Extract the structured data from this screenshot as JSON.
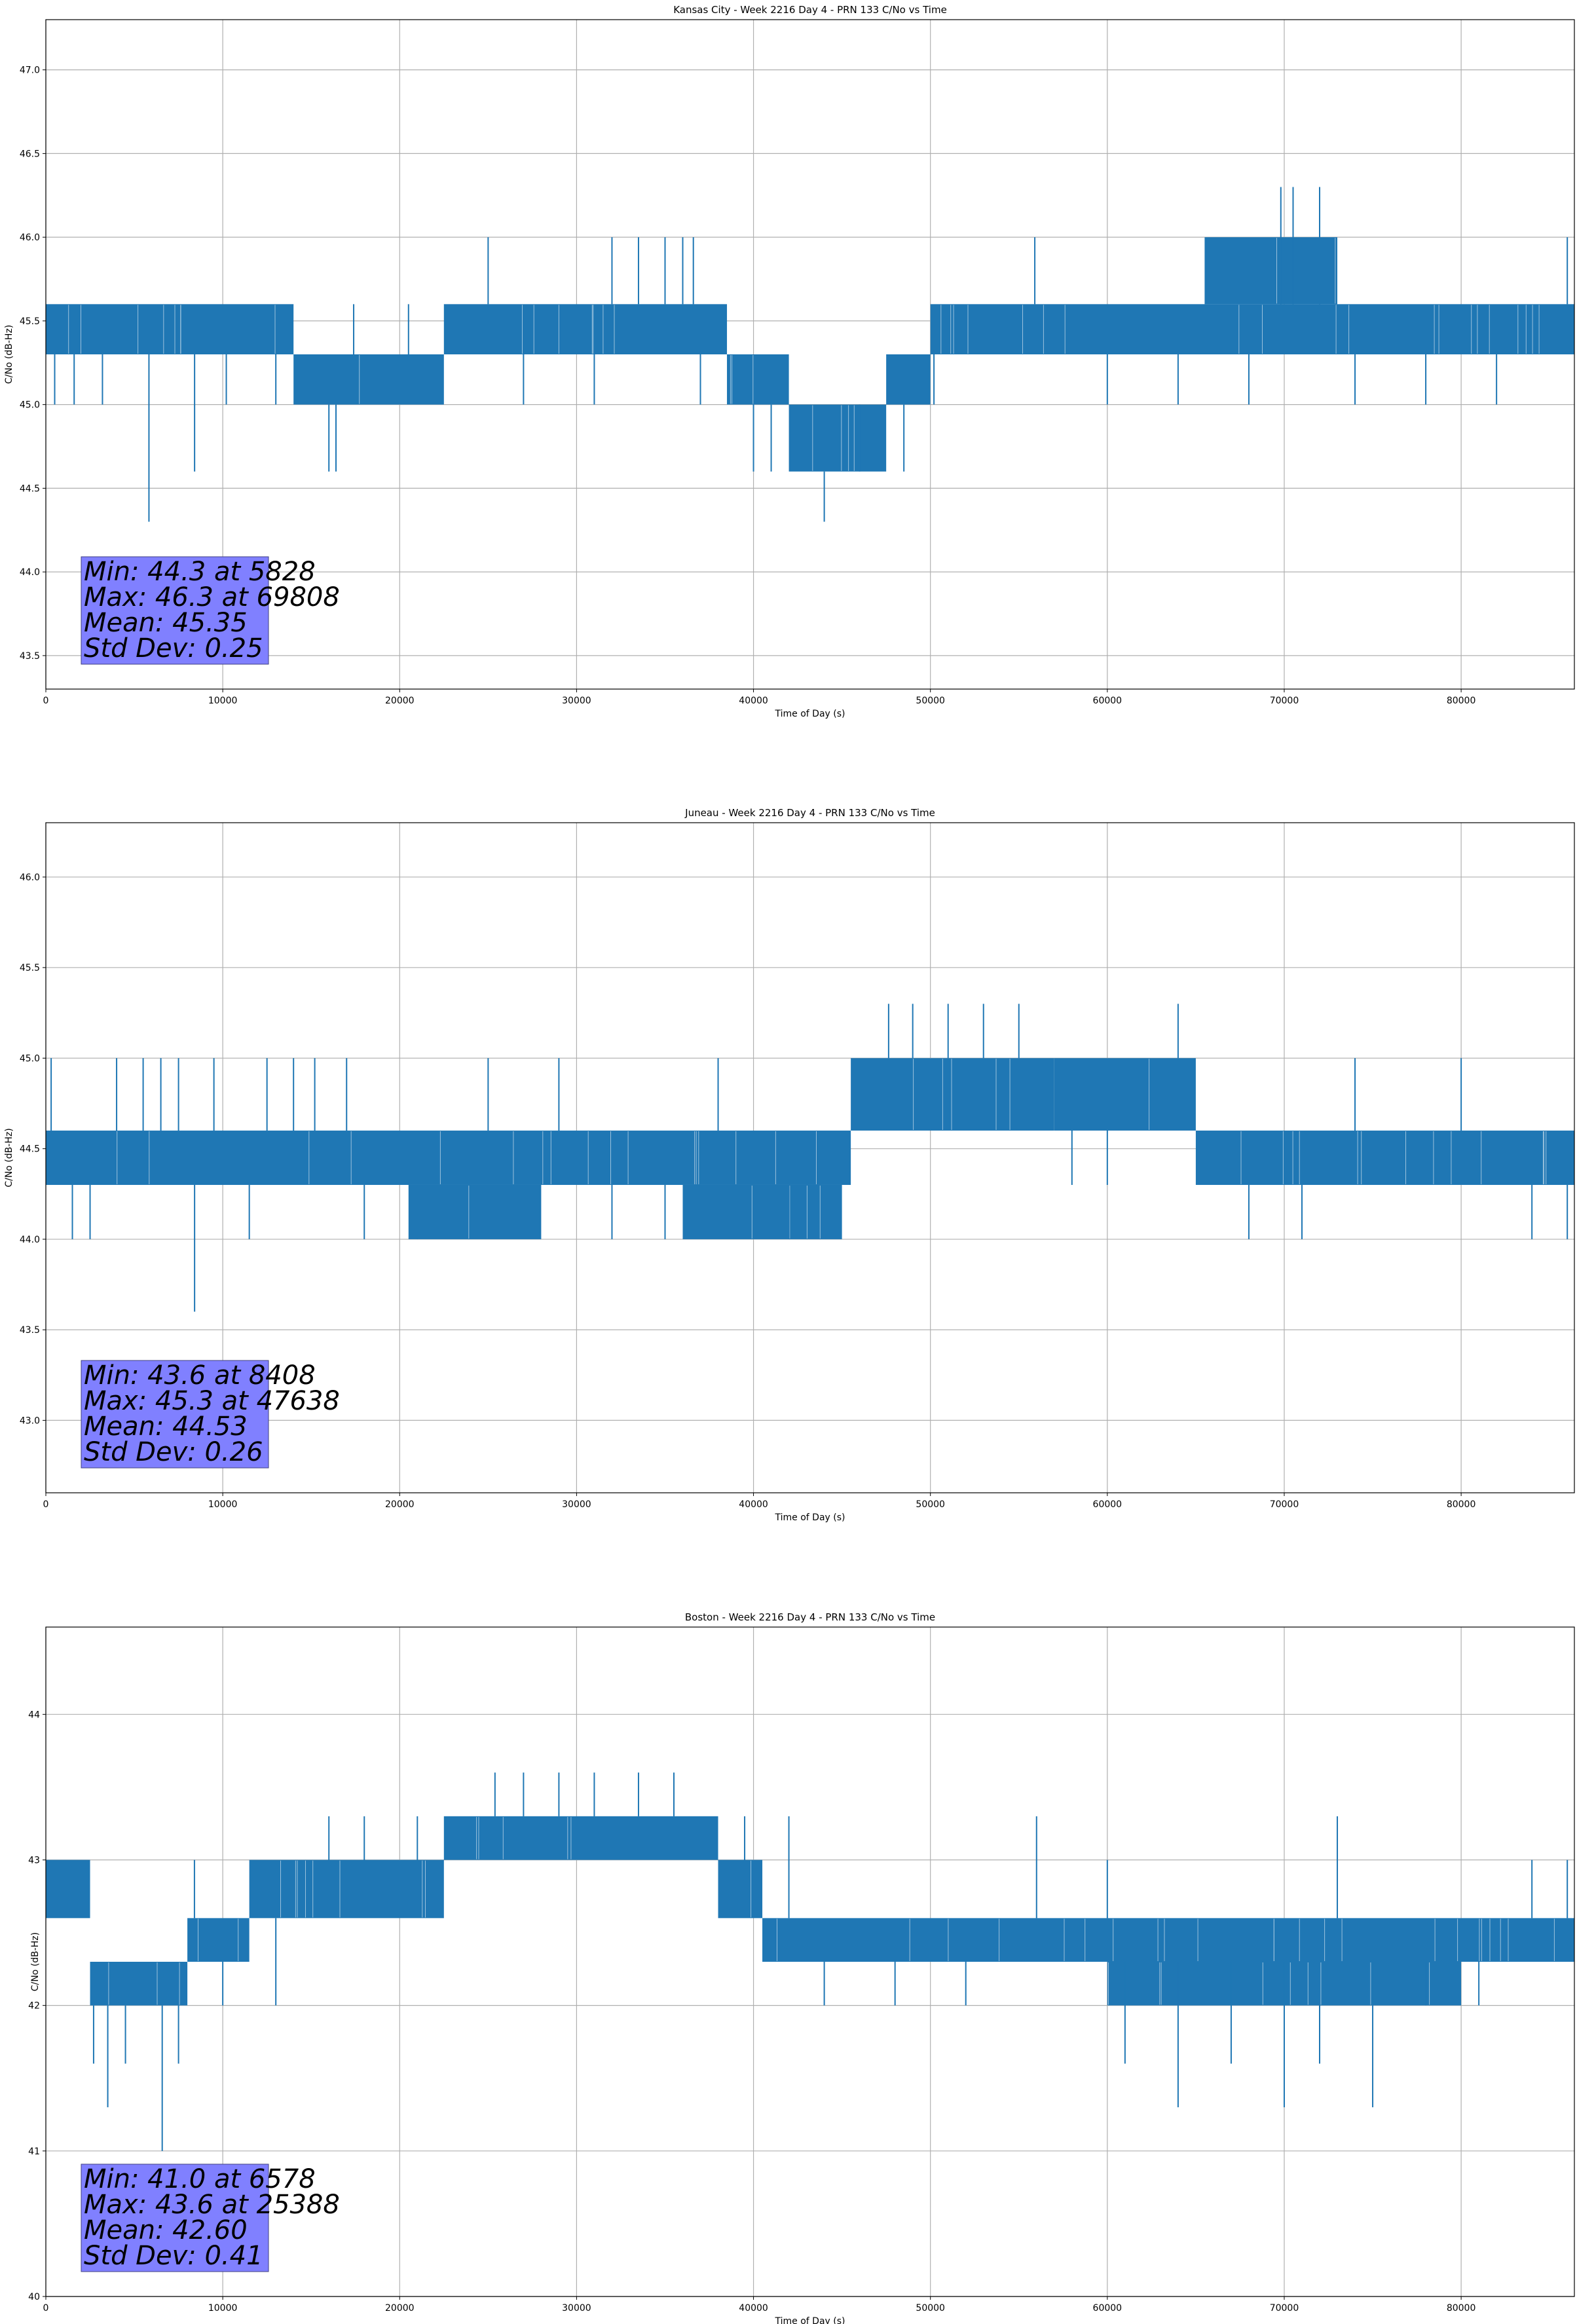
{
  "chart_data": [
    {
      "type": "line",
      "title": "Kansas City - Week 2216 Day 4 - PRN 133 C/No vs Time",
      "xlabel": "Time of Day (s)",
      "ylabel": "C/No (dB-Hz)",
      "xlim": [
        0,
        86400
      ],
      "ylim": [
        43.3,
        47.3
      ],
      "xticks": [
        0,
        10000,
        20000,
        30000,
        40000,
        50000,
        60000,
        70000,
        80000
      ],
      "yticks": [
        43.5,
        44.0,
        44.5,
        45.0,
        45.5,
        46.0,
        46.5,
        47.0
      ],
      "ytick_labels": [
        "43.5",
        "44.0",
        "44.5",
        "45.0",
        "45.5",
        "46.0",
        "46.5",
        "47.0"
      ],
      "grid": true,
      "line_color": "#1f77b4",
      "stats_box_color": "#8080ff",
      "stats": [
        "Min: 44.3 at 5828",
        "Max: 46.3 at 69808",
        "Mean: 45.35",
        "Std Dev: 0.25"
      ],
      "segments": [
        {
          "x": [
            0,
            14000
          ],
          "low": 45.3,
          "high": 45.6
        },
        {
          "x": [
            14000,
            22500
          ],
          "low": 45.0,
          "high": 45.3
        },
        {
          "x": [
            22500,
            38500
          ],
          "low": 45.3,
          "high": 45.6
        },
        {
          "x": [
            38500,
            42000
          ],
          "low": 45.0,
          "high": 45.3
        },
        {
          "x": [
            42000,
            47500
          ],
          "low": 44.6,
          "high": 45.0
        },
        {
          "x": [
            47500,
            50000
          ],
          "low": 45.0,
          "high": 45.3
        },
        {
          "x": [
            50000,
            86400
          ],
          "low": 45.3,
          "high": 45.6
        },
        {
          "x": [
            65500,
            73000
          ],
          "low": 45.6,
          "high": 46.0
        }
      ],
      "spikes": [
        [
          500,
          45.0
        ],
        [
          1600,
          45.0
        ],
        [
          3200,
          45.0
        ],
        [
          5828,
          44.3
        ],
        [
          8408,
          44.6
        ],
        [
          10200,
          45.0
        ],
        [
          13000,
          45.0
        ],
        [
          16000,
          44.6
        ],
        [
          16400,
          44.6
        ],
        [
          17400,
          45.6
        ],
        [
          20500,
          45.6
        ],
        [
          25000,
          46.0
        ],
        [
          27000,
          45.0
        ],
        [
          31000,
          45.0
        ],
        [
          32000,
          46.0
        ],
        [
          33500,
          46.0
        ],
        [
          35000,
          46.0
        ],
        [
          36000,
          46.0
        ],
        [
          36600,
          46.0
        ],
        [
          37000,
          45.0
        ],
        [
          40000,
          44.6
        ],
        [
          41000,
          44.6
        ],
        [
          44000,
          44.3
        ],
        [
          46000,
          44.6
        ],
        [
          48500,
          44.6
        ],
        [
          50200,
          45.0
        ],
        [
          55900,
          46.0
        ],
        [
          60000,
          45.0
        ],
        [
          64000,
          45.0
        ],
        [
          68000,
          45.0
        ],
        [
          69808,
          46.3
        ],
        [
          70500,
          46.3
        ],
        [
          72000,
          46.3
        ],
        [
          73500,
          45.6
        ],
        [
          74000,
          45.0
        ],
        [
          78000,
          45.0
        ],
        [
          82000,
          45.0
        ],
        [
          86000,
          46.0
        ]
      ]
    },
    {
      "type": "line",
      "title": "Juneau - Week 2216 Day 4 - PRN 133 C/No vs Time",
      "xlabel": "Time of Day (s)",
      "ylabel": "C/No (dB-Hz)",
      "xlim": [
        0,
        86400
      ],
      "ylim": [
        42.6,
        46.3
      ],
      "xticks": [
        0,
        10000,
        20000,
        30000,
        40000,
        50000,
        60000,
        70000,
        80000
      ],
      "yticks": [
        43.0,
        43.5,
        44.0,
        44.5,
        45.0,
        45.5,
        46.0
      ],
      "ytick_labels": [
        "43.0",
        "43.5",
        "44.0",
        "44.5",
        "45.0",
        "45.5",
        "46.0"
      ],
      "grid": true,
      "line_color": "#1f77b4",
      "stats_box_color": "#8080ff",
      "stats": [
        "Min: 43.6 at 8408",
        "Max: 45.3 at 47638",
        "Mean: 44.53",
        "Std Dev: 0.26"
      ],
      "segments": [
        {
          "x": [
            0,
            45500
          ],
          "low": 44.3,
          "high": 44.6
        },
        {
          "x": [
            45500,
            57000
          ],
          "low": 44.6,
          "high": 45.0
        },
        {
          "x": [
            57000,
            65000
          ],
          "low": 44.6,
          "high": 45.0
        },
        {
          "x": [
            65000,
            86400
          ],
          "low": 44.3,
          "high": 44.6
        },
        {
          "x": [
            20500,
            28000
          ],
          "low": 44.0,
          "high": 44.3
        },
        {
          "x": [
            36000,
            45000
          ],
          "low": 44.0,
          "high": 44.3
        }
      ],
      "spikes": [
        [
          300,
          45.0
        ],
        [
          1500,
          44.0
        ],
        [
          2500,
          44.0
        ],
        [
          4000,
          45.0
        ],
        [
          5500,
          45.0
        ],
        [
          6500,
          45.0
        ],
        [
          7500,
          45.0
        ],
        [
          8408,
          43.6
        ],
        [
          9500,
          45.0
        ],
        [
          11500,
          44.0
        ],
        [
          12500,
          45.0
        ],
        [
          14000,
          45.0
        ],
        [
          15200,
          45.0
        ],
        [
          17000,
          45.0
        ],
        [
          18000,
          44.0
        ],
        [
          21000,
          44.0
        ],
        [
          25000,
          45.0
        ],
        [
          29000,
          45.0
        ],
        [
          32000,
          44.0
        ],
        [
          35000,
          44.0
        ],
        [
          38000,
          45.0
        ],
        [
          42000,
          44.0
        ],
        [
          47638,
          45.3
        ],
        [
          49000,
          45.3
        ],
        [
          51000,
          45.3
        ],
        [
          53000,
          45.3
        ],
        [
          55000,
          45.3
        ],
        [
          58000,
          44.3
        ],
        [
          60000,
          44.3
        ],
        [
          64000,
          45.3
        ],
        [
          68000,
          44.0
        ],
        [
          71000,
          44.0
        ],
        [
          74000,
          45.0
        ],
        [
          80000,
          45.0
        ],
        [
          84000,
          44.0
        ],
        [
          86000,
          44.0
        ]
      ]
    },
    {
      "type": "line",
      "title": "Boston - Week 2216 Day 4 - PRN 133 C/No vs Time",
      "xlabel": "Time of Day (s)",
      "ylabel": "C/No (dB-Hz)",
      "xlim": [
        0,
        86400
      ],
      "ylim": [
        40.0,
        44.6
      ],
      "xticks": [
        0,
        10000,
        20000,
        30000,
        40000,
        50000,
        60000,
        70000,
        80000
      ],
      "yticks": [
        40,
        41,
        42,
        43,
        44
      ],
      "ytick_labels": [
        "40",
        "41",
        "42",
        "43",
        "44"
      ],
      "grid": true,
      "line_color": "#1f77b4",
      "stats_box_color": "#8080ff",
      "stats": [
        "Min: 41.0 at 6578",
        "Max: 43.6 at 25388",
        "Mean: 42.60",
        "Std Dev: 0.41"
      ],
      "segments": [
        {
          "x": [
            0,
            2500
          ],
          "low": 42.6,
          "high": 43.0
        },
        {
          "x": [
            2500,
            8000
          ],
          "low": 42.0,
          "high": 42.3
        },
        {
          "x": [
            8000,
            11500
          ],
          "low": 42.3,
          "high": 42.6
        },
        {
          "x": [
            11500,
            22500
          ],
          "low": 42.6,
          "high": 43.0
        },
        {
          "x": [
            22500,
            38000
          ],
          "low": 43.0,
          "high": 43.3
        },
        {
          "x": [
            38000,
            40500
          ],
          "low": 42.6,
          "high": 43.0
        },
        {
          "x": [
            40500,
            86400
          ],
          "low": 42.3,
          "high": 42.6
        },
        {
          "x": [
            60000,
            80000
          ],
          "low": 42.0,
          "high": 42.3
        }
      ],
      "spikes": [
        [
          500,
          43.0
        ],
        [
          1500,
          43.0
        ],
        [
          2700,
          41.6
        ],
        [
          3500,
          41.3
        ],
        [
          4500,
          41.6
        ],
        [
          6578,
          41.0
        ],
        [
          7500,
          41.6
        ],
        [
          8400,
          43.0
        ],
        [
          10000,
          42.0
        ],
        [
          13000,
          42.0
        ],
        [
          16000,
          43.3
        ],
        [
          18000,
          43.3
        ],
        [
          21000,
          43.3
        ],
        [
          25388,
          43.6
        ],
        [
          27000,
          43.6
        ],
        [
          29000,
          43.6
        ],
        [
          31000,
          43.6
        ],
        [
          33500,
          43.6
        ],
        [
          35500,
          43.6
        ],
        [
          39500,
          43.3
        ],
        [
          42000,
          43.3
        ],
        [
          44000,
          42.0
        ],
        [
          48000,
          42.0
        ],
        [
          52000,
          42.0
        ],
        [
          56000,
          43.3
        ],
        [
          60000,
          43.0
        ],
        [
          61000,
          41.6
        ],
        [
          64000,
          41.3
        ],
        [
          67000,
          41.6
        ],
        [
          70000,
          41.3
        ],
        [
          72000,
          41.6
        ],
        [
          73000,
          43.3
        ],
        [
          75000,
          41.3
        ],
        [
          78000,
          42.0
        ],
        [
          81000,
          42.0
        ],
        [
          84000,
          43.0
        ],
        [
          86000,
          43.0
        ]
      ]
    }
  ]
}
